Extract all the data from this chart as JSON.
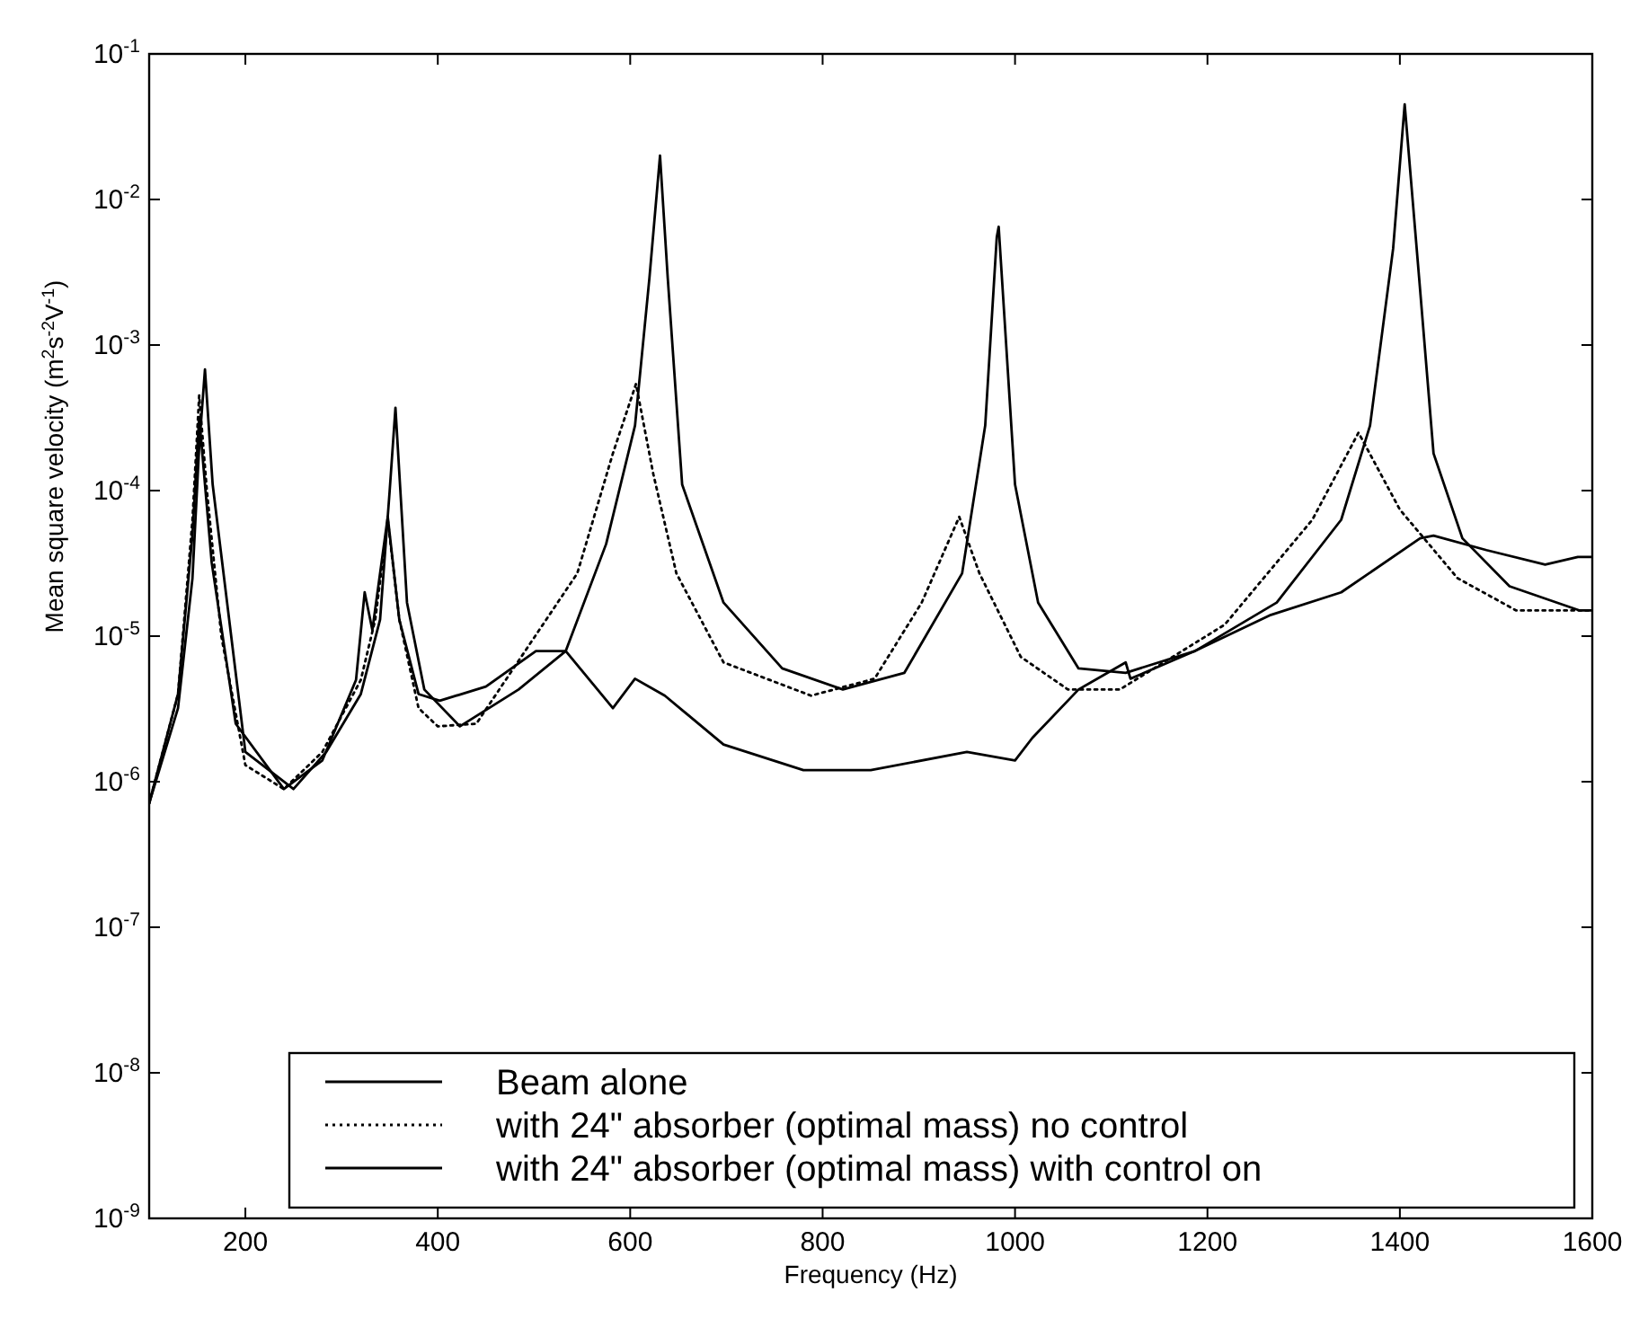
{
  "chart_data": {
    "type": "line",
    "xlabel": "Frequency (Hz)",
    "ylabel": "Mean square velocity (m$^{2}$s$^{-2}$V$^{-1}$)",
    "log": "y",
    "xlim": [
      100,
      1600
    ],
    "xticks": [
      200,
      400,
      600,
      800,
      1000,
      1200,
      1400,
      1600
    ],
    "ylim": [
      1e-09,
      0.1
    ],
    "yticks": [
      {
        "value": 1e-09,
        "label": "10$^{-9}$"
      },
      {
        "value": 1e-08,
        "label": "10$^{-8}$"
      },
      {
        "value": 1e-07,
        "label": "10$^{-7}$"
      },
      {
        "value": 1e-06,
        "label": "10$^{-6}$"
      },
      {
        "value": 1e-05,
        "label": "10$^{-5}$"
      },
      {
        "value": 0.0001,
        "label": "10$^{-4}$"
      },
      {
        "value": 0.001,
        "label": "10$^{-3}$"
      },
      {
        "value": 0.01,
        "label": "10$^{-2}$"
      },
      {
        "value": 0.1,
        "label": "10$^{-1}$"
      }
    ],
    "grid": false,
    "legend": "bottom",
    "marker": "none",
    "series": [
      {
        "name": "Beam alone",
        "color": "#000000",
        "line_style": "solid",
        "x": [
          100,
          130,
          145,
          152,
          158,
          166,
          181,
          200,
          250,
          284,
          320,
          340,
          350,
          356,
          368,
          386,
          423,
          484,
          533,
          575,
          605,
          620,
          631,
          639,
          654,
          697,
          758,
          821,
          885,
          945,
          969,
          981,
          983,
          1000,
          1024,
          1066,
          1115,
          1187,
          1272,
          1339,
          1369,
          1393,
          1405,
          1420,
          1435,
          1465,
          1514,
          1587,
          1600
        ],
        "values": [
          7.1e-07,
          3.2e-06,
          2.5e-05,
          0.0002,
          0.00068,
          0.00011,
          1.7e-05,
          1.6e-06,
          8.9e-07,
          1.6e-06,
          4e-06,
          1.3e-05,
          0.0001,
          0.00037,
          1.7e-05,
          4.3e-06,
          2.4e-06,
          4.3e-06,
          7.9e-06,
          4.3e-05,
          0.00028,
          0.0029,
          0.02,
          0.0029,
          0.00011,
          1.7e-05,
          6e-06,
          4.3e-06,
          5.6e-06,
          2.7e-05,
          0.00028,
          0.0055,
          0.0065,
          0.00011,
          1.7e-05,
          6e-06,
          5.6e-06,
          7.9e-06,
          1.7e-05,
          6.3e-05,
          0.00028,
          0.0046,
          0.045,
          0.0029,
          0.00018,
          4.7e-05,
          2.2e-05,
          1.5e-05,
          1.5e-05
        ]
      },
      {
        "name": "with 24\" absorber (optimal mass) no control",
        "color": "#000000",
        "line_style": "dotted",
        "x": [
          100,
          130,
          145,
          152,
          160,
          175,
          200,
          240,
          280,
          320,
          335,
          348,
          360,
          380,
          400,
          440,
          545,
          582,
          606,
          624,
          648,
          697,
          788,
          854,
          903,
          942,
          963,
          1006,
          1055,
          1109,
          1218,
          1309,
          1357,
          1400,
          1460,
          1521,
          1600
        ],
        "values": [
          7.1e-07,
          4e-06,
          6.3e-05,
          0.00045,
          0.0001,
          1e-05,
          1.3e-06,
          8.9e-07,
          1.6e-06,
          5e-06,
          1.3e-05,
          6.3e-05,
          1.3e-05,
          3.2e-06,
          2.4e-06,
          2.5e-06,
          2.7e-05,
          0.00018,
          0.00054,
          0.00013,
          2.7e-05,
          6.6e-06,
          3.9e-06,
          5.1e-06,
          1.7e-05,
          6.6e-05,
          2.7e-05,
          7.2e-06,
          4.3e-06,
          4.3e-06,
          1.2e-05,
          6.3e-05,
          0.00025,
          7.4e-05,
          2.5e-05,
          1.5e-05,
          1.5e-05
        ]
      },
      {
        "name": "with 24\" absorber (optimal mass) with control on",
        "color": "#000000",
        "line_style": "solid",
        "x": [
          100,
          130,
          145,
          152,
          165,
          190,
          240,
          280,
          315,
          324,
          332,
          348,
          360,
          380,
          402,
          450,
          502,
          533,
          582,
          605,
          636,
          697,
          780,
          850,
          950,
          1000,
          1018,
          1066,
          1115,
          1120,
          1187,
          1266,
          1339,
          1421,
          1435,
          1490,
          1551,
          1585,
          1600
        ],
        "values": [
          7.1e-07,
          4e-06,
          5e-05,
          0.00032,
          3.2e-05,
          2.5e-06,
          8.9e-07,
          1.4e-06,
          5e-06,
          2e-05,
          1.1e-05,
          6.6e-05,
          1.3e-05,
          4e-06,
          3.6e-06,
          4.5e-06,
          7.9e-06,
          7.9e-06,
          3.2e-06,
          5.1e-06,
          3.9e-06,
          1.8e-06,
          1.2e-06,
          1.2e-06,
          1.6e-06,
          1.4e-06,
          2e-06,
          4.3e-06,
          6.6e-06,
          5.1e-06,
          7.9e-06,
          1.4e-05,
          2e-05,
          4.7e-05,
          4.9e-05,
          3.9e-05,
          3.1e-05,
          3.5e-05,
          3.5e-05
        ]
      }
    ]
  }
}
